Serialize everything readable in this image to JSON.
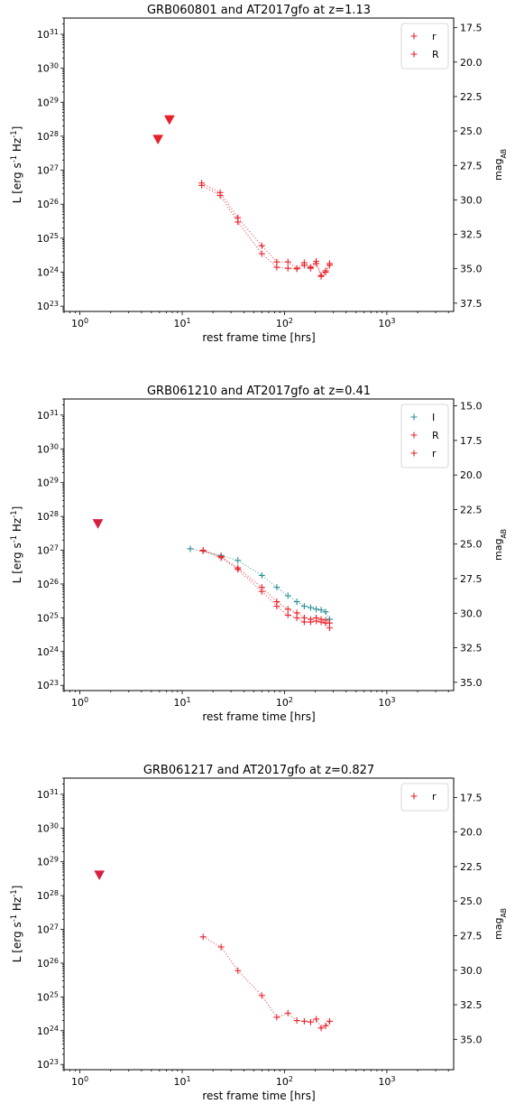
{
  "colors": {
    "red": "#e8202a",
    "teal": "#2a8f96",
    "crimson": "#d62041"
  },
  "chart_data": [
    {
      "type": "scatter",
      "title": "GRB060801 and AT2017gfo at z=1.13",
      "xlabel": "rest frame time [hrs]",
      "ylabel": "L [erg s$^{-1}$ Hz$^{-1}$]",
      "ylabel_right": "mag$_{AB}$",
      "xscale": "log",
      "yscale": "log",
      "xlim": [
        0.7,
        4500
      ],
      "ylim": [
        7e+22,
        3e+31
      ],
      "xticks": [
        {
          "value": 1,
          "base": "10",
          "exp": "0"
        },
        {
          "value": 10,
          "base": "10",
          "exp": "1"
        },
        {
          "value": 100,
          "base": "10",
          "exp": "2"
        },
        {
          "value": 1000,
          "base": "10",
          "exp": "3"
        }
      ],
      "yticks": [
        {
          "value": 1e+23,
          "base": "10",
          "exp": "23"
        },
        {
          "value": 1e+24,
          "base": "10",
          "exp": "24"
        },
        {
          "value": 1e+25,
          "base": "10",
          "exp": "25"
        },
        {
          "value": 1e+26,
          "base": "10",
          "exp": "26"
        },
        {
          "value": 1e+27,
          "base": "10",
          "exp": "27"
        },
        {
          "value": 1e+28,
          "base": "10",
          "exp": "28"
        },
        {
          "value": 1e+29,
          "base": "10",
          "exp": "29"
        },
        {
          "value": 1e+30,
          "base": "10",
          "exp": "30"
        },
        {
          "value": 1e+31,
          "base": "10",
          "exp": "31"
        }
      ],
      "right_ylim": [
        38.1,
        16.8
      ],
      "right_ticks": [
        "17.5",
        "20.0",
        "22.5",
        "25.0",
        "27.5",
        "30.0",
        "32.5",
        "35.0",
        "37.5"
      ],
      "legend_position": "top-right",
      "legend": [
        {
          "label": "r",
          "color": "#e8202a"
        },
        {
          "label": "R",
          "color": "#e8202a"
        }
      ],
      "series": [
        {
          "color": "#e8202a",
          "points": [
            [
              15.5,
              4.2e+26
            ],
            [
              23.5,
              2.2e+26
            ],
            [
              35,
              4e+25
            ],
            [
              60,
              6e+24
            ],
            [
              84,
              2e+24
            ],
            [
              108,
              2e+24
            ],
            [
              132,
              1.3e+24
            ],
            [
              156,
              1.9e+24
            ],
            [
              180,
              1.4e+24
            ],
            [
              204,
              2.1e+24
            ],
            [
              228,
              8e+23
            ],
            [
              252,
              1.1e+24
            ],
            [
              276,
              1.8e+24
            ]
          ]
        },
        {
          "color": "#e8202a",
          "points": [
            [
              15.5,
              3.6e+26
            ],
            [
              23.5,
              1.8e+26
            ],
            [
              35,
              3e+25
            ],
            [
              60,
              3.5e+24
            ],
            [
              84,
              1.4e+24
            ],
            [
              108,
              1.3e+24
            ],
            [
              132,
              1.25e+24
            ],
            [
              156,
              1.6e+24
            ],
            [
              180,
              1.3e+24
            ],
            [
              204,
              1.8e+24
            ],
            [
              228,
              7.5e+23
            ],
            [
              252,
              1e+24
            ],
            [
              276,
              1.6e+24
            ]
          ]
        }
      ],
      "upper_limits": [
        {
          "x": 5.8,
          "y": 8e+27,
          "color": "#e8202a"
        },
        {
          "x": 7.5,
          "y": 3e+28,
          "color": "#e8202a"
        }
      ]
    },
    {
      "type": "scatter",
      "title": "GRB061210 and AT2017gfo at z=0.41",
      "xlabel": "rest frame time [hrs]",
      "ylabel": "L [erg s$^{-1}$ Hz$^{-1}$]",
      "ylabel_right": "mag$_{AB}$",
      "xscale": "log",
      "yscale": "log",
      "xlim": [
        0.7,
        4500
      ],
      "ylim": [
        7e+22,
        3e+31
      ],
      "xticks": [
        {
          "value": 1,
          "base": "10",
          "exp": "0"
        },
        {
          "value": 10,
          "base": "10",
          "exp": "1"
        },
        {
          "value": 100,
          "base": "10",
          "exp": "2"
        },
        {
          "value": 1000,
          "base": "10",
          "exp": "3"
        }
      ],
      "yticks": [
        {
          "value": 1e+23,
          "base": "10",
          "exp": "23"
        },
        {
          "value": 1e+24,
          "base": "10",
          "exp": "24"
        },
        {
          "value": 1e+25,
          "base": "10",
          "exp": "25"
        },
        {
          "value": 1e+26,
          "base": "10",
          "exp": "26"
        },
        {
          "value": 1e+27,
          "base": "10",
          "exp": "27"
        },
        {
          "value": 1e+28,
          "base": "10",
          "exp": "28"
        },
        {
          "value": 1e+29,
          "base": "10",
          "exp": "29"
        },
        {
          "value": 1e+30,
          "base": "10",
          "exp": "30"
        },
        {
          "value": 1e+31,
          "base": "10",
          "exp": "31"
        }
      ],
      "right_ylim": [
        35.6,
        14.5
      ],
      "right_ticks": [
        "15.0",
        "17.5",
        "20.0",
        "22.5",
        "25.0",
        "27.5",
        "30.0",
        "32.5",
        "35.0"
      ],
      "legend_position": "top-right",
      "legend": [
        {
          "label": "I",
          "color": "#2a8f96"
        },
        {
          "label": "R",
          "color": "#e8202a"
        },
        {
          "label": "r",
          "color": "#e8202a"
        }
      ],
      "series": [
        {
          "color": "#2a8f96",
          "points": [
            [
              12,
              1.1e+27
            ],
            [
              24,
              7e+26
            ],
            [
              35,
              5e+26
            ],
            [
              60,
              1.8e+26
            ],
            [
              84,
              8e+25
            ],
            [
              108,
              4.5e+25
            ],
            [
              132,
              3e+25
            ],
            [
              156,
              2.2e+25
            ],
            [
              180,
              2e+25
            ],
            [
              204,
              1.8e+25
            ],
            [
              228,
              1.7e+25
            ],
            [
              252,
              1.5e+25
            ],
            [
              276,
              9e+24
            ]
          ]
        },
        {
          "color": "#e8202a",
          "points": [
            [
              16,
              1e+27
            ],
            [
              24,
              6.5e+26
            ],
            [
              35,
              3e+26
            ],
            [
              60,
              8e+25
            ],
            [
              84,
              3e+25
            ],
            [
              108,
              1.8e+25
            ],
            [
              132,
              1.4e+25
            ],
            [
              156,
              1e+25
            ],
            [
              180,
              9e+24
            ],
            [
              204,
              1e+25
            ],
            [
              228,
              9e+24
            ],
            [
              252,
              8.5e+24
            ],
            [
              276,
              7e+24
            ]
          ]
        },
        {
          "color": "#e8202a",
          "points": [
            [
              16,
              9.5e+26
            ],
            [
              24,
              6e+26
            ],
            [
              35,
              2.7e+26
            ],
            [
              60,
              6e+25
            ],
            [
              84,
              2.2e+25
            ],
            [
              108,
              1.2e+25
            ],
            [
              132,
              1e+25
            ],
            [
              156,
              7.5e+24
            ],
            [
              180,
              7.5e+24
            ],
            [
              204,
              8e+24
            ],
            [
              228,
              7.5e+24
            ],
            [
              252,
              7e+24
            ],
            [
              276,
              5e+24
            ]
          ]
        }
      ],
      "upper_limits": [
        {
          "x": 1.5,
          "y": 6e+27,
          "color": "#d62041"
        }
      ]
    },
    {
      "type": "scatter",
      "title": "GRB061217 and AT2017gfo at z=0.827",
      "xlabel": "rest frame time [hrs]",
      "ylabel": "L [erg s$^{-1}$ Hz$^{-1}$]",
      "ylabel_right": "mag$_{AB}$",
      "xscale": "log",
      "yscale": "log",
      "xlim": [
        0.7,
        4500
      ],
      "ylim": [
        7e+22,
        3e+31
      ],
      "xticks": [
        {
          "value": 1,
          "base": "10",
          "exp": "0"
        },
        {
          "value": 10,
          "base": "10",
          "exp": "1"
        },
        {
          "value": 100,
          "base": "10",
          "exp": "2"
        },
        {
          "value": 1000,
          "base": "10",
          "exp": "3"
        }
      ],
      "yticks": [
        {
          "value": 1e+23,
          "base": "10",
          "exp": "23"
        },
        {
          "value": 1e+24,
          "base": "10",
          "exp": "24"
        },
        {
          "value": 1e+25,
          "base": "10",
          "exp": "25"
        },
        {
          "value": 1e+26,
          "base": "10",
          "exp": "26"
        },
        {
          "value": 1e+27,
          "base": "10",
          "exp": "27"
        },
        {
          "value": 1e+28,
          "base": "10",
          "exp": "28"
        },
        {
          "value": 1e+29,
          "base": "10",
          "exp": "29"
        },
        {
          "value": 1e+30,
          "base": "10",
          "exp": "30"
        },
        {
          "value": 1e+31,
          "base": "10",
          "exp": "31"
        }
      ],
      "right_ylim": [
        37.2,
        16.1
      ],
      "right_ticks": [
        "17.5",
        "20.0",
        "22.5",
        "25.0",
        "27.5",
        "30.0",
        "32.5",
        "35.0"
      ],
      "legend_position": "top-right",
      "legend": [
        {
          "label": "r",
          "color": "#e8202a"
        }
      ],
      "series": [
        {
          "color": "#e8202a",
          "points": [
            [
              16,
              6e+26
            ],
            [
              24,
              3e+26
            ],
            [
              35,
              6e+25
            ],
            [
              60,
              1.1e+25
            ],
            [
              84,
              2.5e+24
            ],
            [
              108,
              3.3e+24
            ],
            [
              132,
              2e+24
            ],
            [
              156,
              1.9e+24
            ],
            [
              180,
              1.8e+24
            ],
            [
              204,
              2.2e+24
            ],
            [
              228,
              1.2e+24
            ],
            [
              252,
              1.4e+24
            ],
            [
              276,
              1.9e+24
            ]
          ]
        }
      ],
      "upper_limits": [
        {
          "x": 1.55,
          "y": 4e+28,
          "color": "#d62041"
        }
      ]
    }
  ]
}
